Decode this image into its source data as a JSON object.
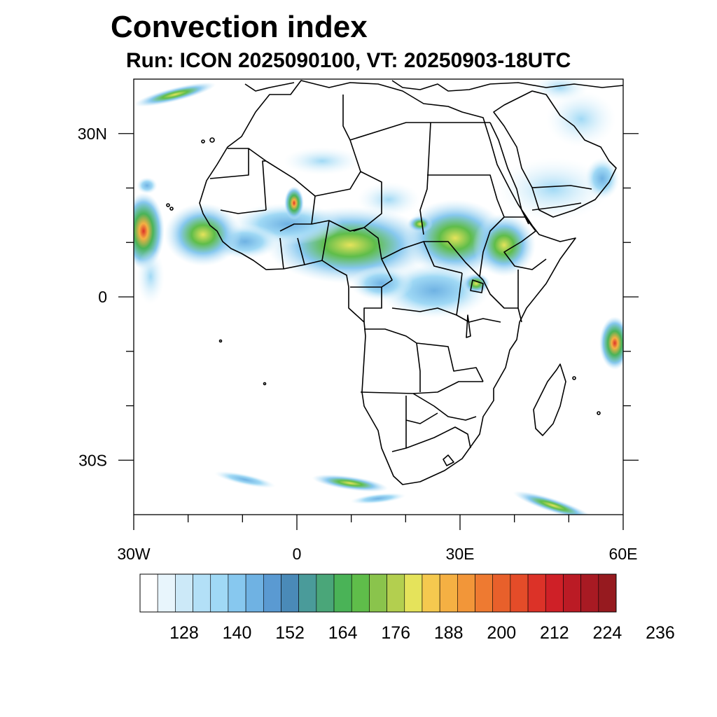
{
  "title": "Convection index",
  "subtitle": "Run: ICON 2025090100,  VT: 20250903-18UTC",
  "map": {
    "region": "Africa",
    "lon_range": [
      -30,
      60
    ],
    "lat_range": [
      -40,
      40
    ],
    "x_tick_labels": [
      {
        "lon": -30,
        "label": "30W"
      },
      {
        "lon": 0,
        "label": "0"
      },
      {
        "lon": 30,
        "label": "30E"
      },
      {
        "lon": 60,
        "label": "60E"
      }
    ],
    "y_tick_labels": [
      {
        "lat": 30,
        "label": "30N"
      },
      {
        "lat": 0,
        "label": "0"
      },
      {
        "lat": -30,
        "label": "30S"
      }
    ],
    "minor_lon_ticks": [
      -20,
      -10,
      10,
      20,
      40,
      50
    ],
    "minor_lat_ticks": [
      20,
      10,
      -10,
      -20
    ]
  },
  "colorbar": {
    "colors": [
      "#ffffff",
      "#e8f5fc",
      "#cce9f8",
      "#b3e0f7",
      "#a0d9f5",
      "#87c8ef",
      "#6fb2e3",
      "#5a9ad2",
      "#4a8ab8",
      "#4a9b9a",
      "#4aa679",
      "#4ab357",
      "#5fbd4a",
      "#8ac44c",
      "#b3cf4f",
      "#e5e35b",
      "#f5c94f",
      "#f5b043",
      "#f29639",
      "#ee7a31",
      "#e8602b",
      "#e44c29",
      "#dc3228",
      "#cf2027",
      "#bb1b25",
      "#a81a23",
      "#961a1f"
    ],
    "labels": [
      "128",
      "140",
      "152",
      "164",
      "176",
      "188",
      "200",
      "212",
      "224",
      "236"
    ]
  }
}
